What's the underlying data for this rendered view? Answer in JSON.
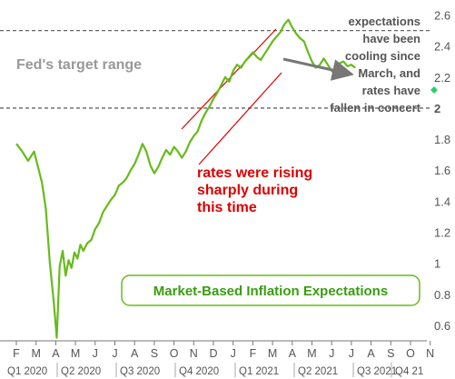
{
  "chart_data": {
    "type": "line",
    "title": "Market-Based Inflation Expectations",
    "ylim": [
      0.5,
      2.65
    ],
    "yticks": [
      0.6,
      0.8,
      1,
      1.2,
      1.4,
      1.6,
      1.8,
      2,
      2.2,
      2.4,
      2.6
    ],
    "ytick_labels": [
      "0.6",
      "0.8",
      "1",
      "1.2",
      "1.4",
      "1.6",
      "1.8",
      "2",
      "2.2",
      "2.4",
      "2.6"
    ],
    "month_ticks": [
      "F",
      "M",
      "A",
      "M",
      "J",
      "J",
      "A",
      "S",
      "O",
      "N",
      "D",
      "J",
      "F",
      "M",
      "A",
      "M",
      "J",
      "J",
      "A",
      "S",
      "O",
      "N"
    ],
    "quarter_ticks": [
      "Q1 2020",
      "Q2 2020",
      "Q3 2020",
      "Q4 2020",
      "Q1 2021",
      "Q2 2021",
      "Q3 2021",
      "Q4 21"
    ],
    "series": [
      {
        "color": "#66bb1a",
        "x": [
          0,
          0.3,
          0.6,
          0.9,
          1.1,
          1.3,
          1.5,
          1.7,
          1.9,
          2.05,
          2.2,
          2.35,
          2.5,
          2.65,
          2.8,
          2.95,
          3.1,
          3.25,
          3.4,
          3.6,
          3.8,
          4.0,
          4.2,
          4.4,
          4.6,
          4.8,
          5.0,
          5.2,
          5.4,
          5.6,
          5.8,
          6.0,
          6.2,
          6.4,
          6.6,
          6.8,
          7.0,
          7.2,
          7.4,
          7.6,
          7.8,
          8.0,
          8.2,
          8.4,
          8.6,
          8.8,
          9.0,
          9.2,
          9.4,
          9.6,
          9.8,
          10.0,
          10.2,
          10.4,
          10.6,
          10.8,
          11.0,
          11.2,
          11.4,
          11.6,
          11.8,
          12.0,
          12.2,
          12.4,
          12.6,
          12.8,
          13.0,
          13.2,
          13.4,
          13.6,
          13.8,
          14.0,
          14.2,
          14.4,
          14.6,
          14.8,
          15.0,
          15.2,
          15.4,
          15.6,
          15.8,
          16.0,
          16.2,
          16.4,
          16.6,
          16.8,
          17.0,
          17.2
        ],
        "values": [
          1.77,
          1.72,
          1.66,
          1.72,
          1.62,
          1.52,
          1.35,
          1.0,
          0.75,
          0.52,
          0.98,
          1.08,
          0.92,
          1.02,
          0.97,
          1.07,
          1.03,
          1.12,
          1.08,
          1.13,
          1.15,
          1.22,
          1.26,
          1.33,
          1.37,
          1.41,
          1.44,
          1.5,
          1.52,
          1.55,
          1.6,
          1.64,
          1.7,
          1.77,
          1.72,
          1.63,
          1.58,
          1.62,
          1.68,
          1.73,
          1.7,
          1.75,
          1.72,
          1.68,
          1.72,
          1.78,
          1.82,
          1.85,
          1.92,
          1.97,
          2.01,
          2.06,
          2.1,
          2.15,
          2.2,
          2.17,
          2.24,
          2.28,
          2.26,
          2.3,
          2.33,
          2.36,
          2.33,
          2.31,
          2.35,
          2.39,
          2.43,
          2.46,
          2.49,
          2.54,
          2.57,
          2.52,
          2.48,
          2.45,
          2.43,
          2.36,
          2.3,
          2.26,
          2.28,
          2.32,
          2.28,
          2.24,
          2.22,
          2.29,
          2.3,
          2.27,
          2.28,
          2.26
        ]
      }
    ],
    "xlim": [
      0,
      21.6
    ],
    "target_range": [
      2,
      2.5
    ],
    "annotations": {
      "fed_range": "Fed's target range",
      "right_note": [
        "expectations",
        "have been",
        "cooling since",
        "March, and",
        "rates have",
        "fallen in concert"
      ],
      "red_note": [
        "rates were rising",
        "sharply during",
        "this time"
      ]
    },
    "colors": {
      "line": "#66bb1a",
      "red_text": "#dd0000",
      "legend_border": "#66bb1a",
      "legend_text": "#3a9c10",
      "dashed": "#666666",
      "fed_text": "#999999",
      "right_note_text": "#555555",
      "arrow": "#777777",
      "marker": "#2ecc71"
    }
  }
}
